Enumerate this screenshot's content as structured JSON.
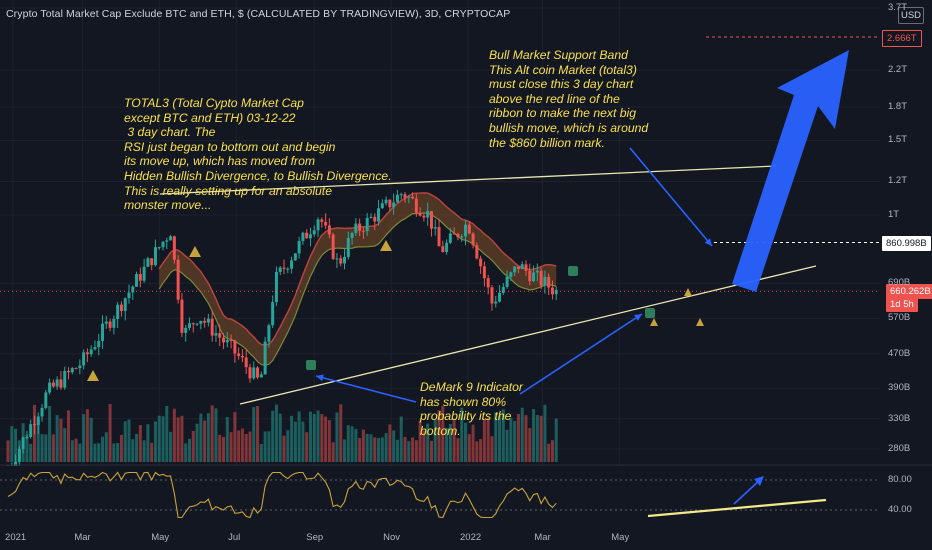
{
  "header": {
    "title": "Crypto Total Market Cap Exclude BTC and ETH, $ (CALCULATED BY TRADINGVIEW), 3D, CRYPTOCAP",
    "currency_button": "USD"
  },
  "annotations": {
    "left_note": "TOTAL3 (Total Cypto Market Cap\nexcept BTC and ETH) 03-12-22\n 3 day chart. The\nRSI just began to bottom out and begin\nits move up, which has moved from\nHidden Bullish Divergence, to Bullish Divergence.\nThis is really setting up for an absolute\nmonster move...",
    "right_note": "Bull Market Support Band\nThis Alt coin Market (total3)\nmust close this 3 day chart\nabove the red line of the\nribbon to make the next big\nbullish move, which is around\nthe $860 billion mark.",
    "demark_note": "DeMark 9 Indicator\nhas shown 80%\nprobability its the\nbottom."
  },
  "price_tags": {
    "target_high": "2.666T",
    "target_mid": "860.998B",
    "current": "660.262B",
    "countdown": "1d 5h"
  },
  "colors": {
    "background": "#131722",
    "up": "#26a69a",
    "down": "#ef5350",
    "annotation": "#f7e04a",
    "arrow": "#2962ff",
    "band_top": "#b7433f",
    "band_bottom": "#7a8a3a",
    "rsi_line": "#c9a33a"
  },
  "chart_data": {
    "type": "candlestick",
    "title": "Crypto Total Market Cap Exclude BTC and ETH, $ (CALCULATED BY TRADINGVIEW), 3D, CRYPTOCAP",
    "y_scale": "log",
    "y_ticks": [
      "3.7T",
      "2.2T",
      "1.8T",
      "1.5T",
      "1.2T",
      "1T",
      "690B",
      "570B",
      "470B",
      "390B",
      "330B",
      "280B"
    ],
    "x_ticks": [
      "2021",
      "Mar",
      "May",
      "Jul",
      "Sep",
      "Nov",
      "2022",
      "Mar",
      "May"
    ],
    "approx_close_path_billions": [
      {
        "date": "2021-01",
        "value": 250
      },
      {
        "date": "2021-02",
        "value": 380
      },
      {
        "date": "2021-03",
        "value": 450
      },
      {
        "date": "2021-04",
        "value": 620
      },
      {
        "date": "2021-05-10",
        "value": 920
      },
      {
        "date": "2021-05-20",
        "value": 520
      },
      {
        "date": "2021-06",
        "value": 580
      },
      {
        "date": "2021-07-01",
        "value": 470
      },
      {
        "date": "2021-07-20",
        "value": 400
      },
      {
        "date": "2021-08",
        "value": 700
      },
      {
        "date": "2021-09-05",
        "value": 1000
      },
      {
        "date": "2021-09-20",
        "value": 760
      },
      {
        "date": "2021-10",
        "value": 900
      },
      {
        "date": "2021-11-10",
        "value": 1130
      },
      {
        "date": "2021-12-01",
        "value": 1000
      },
      {
        "date": "2021-12-10",
        "value": 820
      },
      {
        "date": "2022-01-01",
        "value": 960
      },
      {
        "date": "2022-01-20",
        "value": 620
      },
      {
        "date": "2022-02-10",
        "value": 760
      },
      {
        "date": "2022-03-12",
        "value": 660
      }
    ],
    "levels": {
      "current_price": "660.262B",
      "resistance": "860.998B",
      "target": "2.666T"
    },
    "rsi": {
      "y_ticks": [
        "80.00",
        "40.00"
      ]
    }
  }
}
